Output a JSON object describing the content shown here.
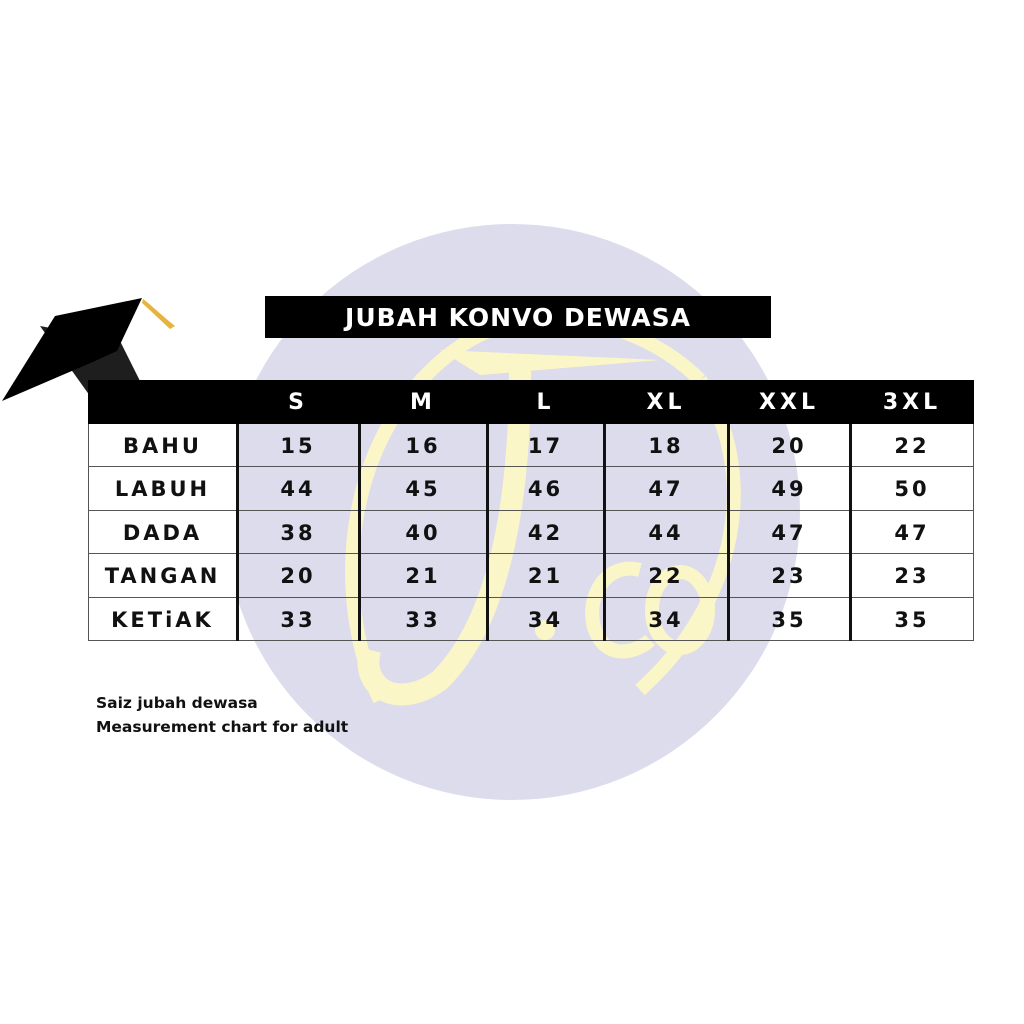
{
  "watermark": {
    "logo_text": "J.co",
    "circle_color": "#dcdcec",
    "logo_color": "#fbf6c8"
  },
  "title": "JUBAH KONVO DEWASA",
  "table": {
    "columns": [
      "S",
      "M",
      "L",
      "XL",
      "XXL",
      "3XL"
    ],
    "rows": [
      {
        "label": "BAHU",
        "values": [
          "15",
          "16",
          "17",
          "18",
          "20",
          "22"
        ]
      },
      {
        "label": "LABUH",
        "values": [
          "44",
          "45",
          "46",
          "47",
          "49",
          "50"
        ]
      },
      {
        "label": "DADA",
        "values": [
          "38",
          "40",
          "42",
          "44",
          "47",
          "47"
        ]
      },
      {
        "label": "TANGAN",
        "values": [
          "20",
          "21",
          "21",
          "22",
          "23",
          "23"
        ]
      },
      {
        "label": "KETiAK",
        "values": [
          "33",
          "33",
          "34",
          "34",
          "35",
          "35"
        ]
      }
    ]
  },
  "caption": {
    "line1": "Saiz jubah dewasa",
    "line2": "Measurement chart for adult"
  },
  "icons": {
    "decoration": "graduation-cap-icon",
    "tassel_color": "#e8b33c"
  }
}
